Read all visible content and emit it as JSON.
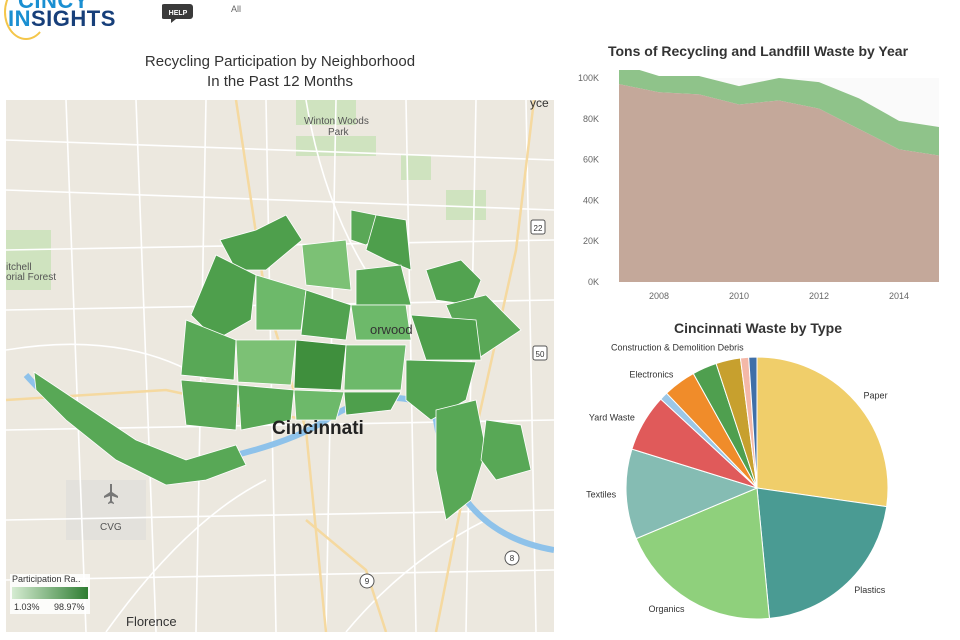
{
  "header": {
    "logo_line1": "CINCY",
    "logo_in": "IN",
    "logo_line2": "SIGHTS",
    "help_label": "HELP",
    "filter_value": "All"
  },
  "map_panel": {
    "title_line1": "Recycling Participation by Neighborhood",
    "title_line2": "In the Past 12 Months",
    "place_labels": [
      "Winton Woods",
      "Park",
      "Cincinnati",
      "Florence",
      "CVG",
      "orwood",
      "itchell",
      "orial Forest",
      "yce"
    ],
    "highway_shields": [
      "22",
      "50",
      "8",
      "9"
    ],
    "legend": {
      "title": "Participation Ra..",
      "min": "1.03%",
      "max": "98.97%",
      "color_low": "#d6ecd2",
      "color_high": "#2e7d32"
    }
  },
  "area_chart": {
    "title": "Tons of Recycling and Landfill Waste by Year",
    "colors": {
      "recycling": "#8fc38a",
      "landfill": "#c4a89a"
    }
  },
  "pie_chart": {
    "title": "Cincinnati Waste by Type"
  },
  "chart_data": [
    {
      "type": "area",
      "title": "Tons of Recycling and Landfill Waste by Year",
      "x": [
        2007,
        2008,
        2009,
        2010,
        2011,
        2012,
        2013,
        2014,
        2015
      ],
      "x_ticks": [
        "2008",
        "2010",
        "2012",
        "2014"
      ],
      "y_ticks": [
        "0K",
        "20K",
        "40K",
        "60K",
        "80K",
        "100K"
      ],
      "ylim": [
        0,
        100000
      ],
      "stacked": true,
      "series": [
        {
          "values": [
            97000,
            93000,
            92000,
            87000,
            89000,
            85000,
            75000,
            65000,
            62000
          ]
        },
        {
          "values": [
            10000,
            8000,
            9000,
            9000,
            11000,
            13000,
            15000,
            14000,
            14000
          ]
        }
      ]
    },
    {
      "type": "pie",
      "title": "Cincinnati Waste by Type",
      "slices": [
        {
          "label": "Paper",
          "value": 27,
          "color": "#f0ce6a"
        },
        {
          "label": "Plastics",
          "value": 21,
          "color": "#4a9b93"
        },
        {
          "label": "Organics",
          "value": 20,
          "color": "#8fd07c"
        },
        {
          "label": "Textiles",
          "value": 11,
          "color": "#85bcb3"
        },
        {
          "label": "Yard Waste",
          "value": 7,
          "color": "#e05a5a"
        },
        {
          "label": "",
          "value": 1,
          "color": "#9cc7e6"
        },
        {
          "label": "Electronics",
          "value": 4,
          "color": "#f08c2a"
        },
        {
          "label": "",
          "value": 3,
          "color": "#4f9f4f"
        },
        {
          "label": "",
          "value": 3,
          "color": "#c7a02e"
        },
        {
          "label": "Construction & Demolition Debris",
          "value": 1,
          "color": "#f4b8a8"
        },
        {
          "label": "",
          "value": 1,
          "color": "#3f6fa8"
        }
      ]
    }
  ]
}
